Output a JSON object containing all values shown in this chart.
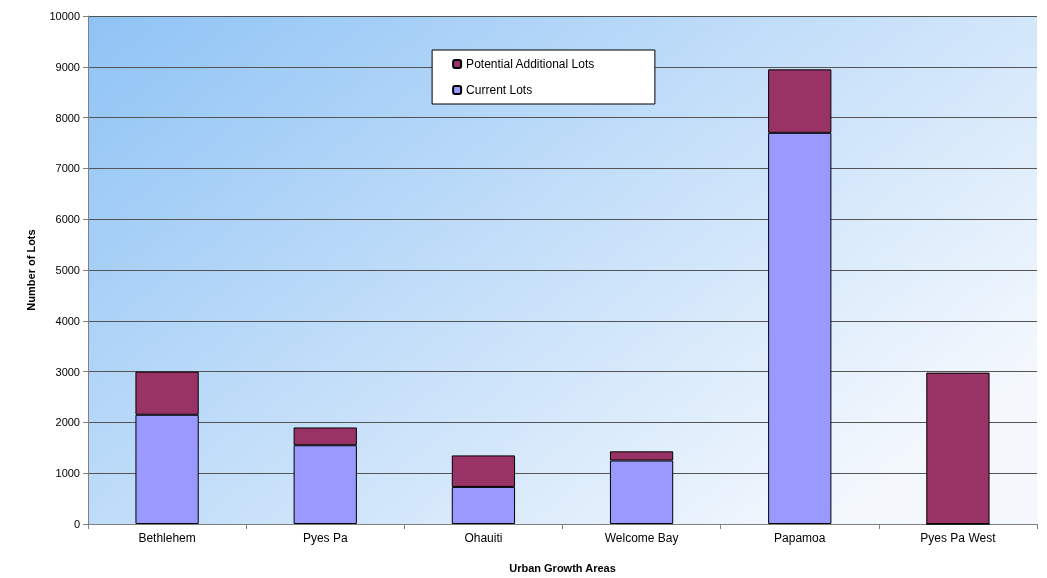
{
  "chart_data": {
    "type": "bar",
    "stacked": true,
    "xlabel": "Urban Growth Areas",
    "ylabel": "Number of Lots",
    "categories": [
      "Bethlehem",
      "Pyes Pa",
      "Ohauiti",
      "Welcome Bay",
      "Papamoa",
      "Pyes Pa West"
    ],
    "series": [
      {
        "name": "Current Lots",
        "color": "#9999ff",
        "values": [
          2150,
          1550,
          730,
          1250,
          7700,
          0
        ]
      },
      {
        "name": "Potential Additional Lots",
        "color": "#993366",
        "values": [
          850,
          350,
          620,
          180,
          1250,
          2980
        ]
      }
    ],
    "ylim": [
      0,
      10000
    ],
    "yticks": [
      0,
      1000,
      2000,
      3000,
      4000,
      5000,
      6000,
      7000,
      8000,
      9000,
      10000
    ],
    "grid": "y",
    "legend": "top"
  }
}
